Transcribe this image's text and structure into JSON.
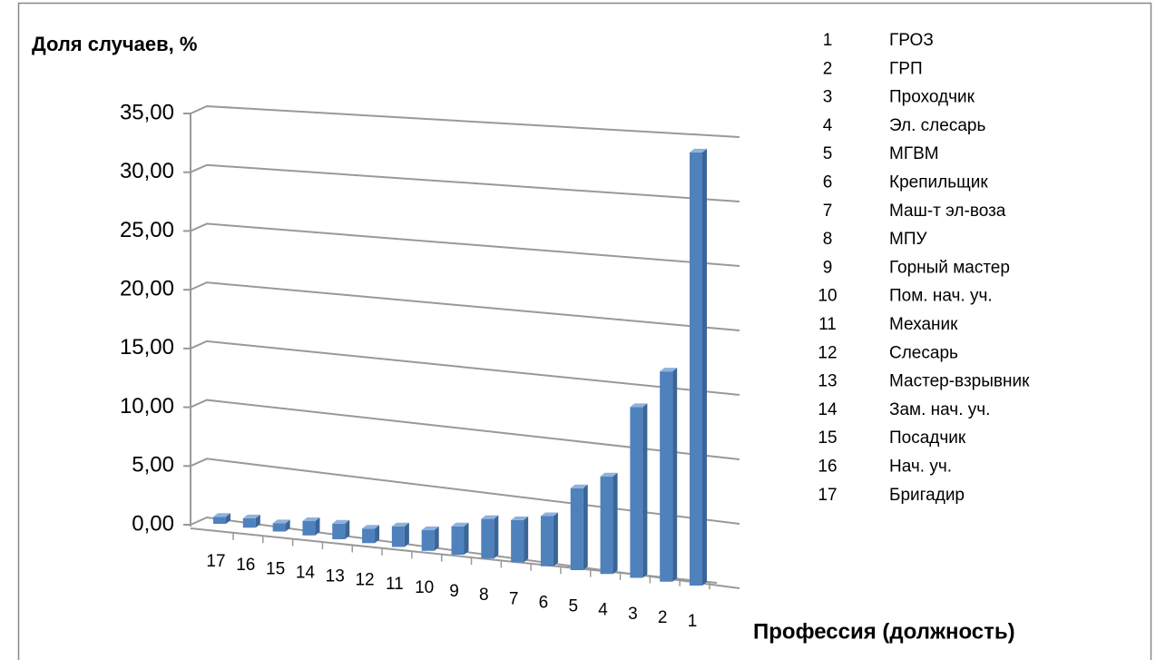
{
  "chart_data": {
    "type": "bar3d",
    "title": "Доля случаев, %",
    "x_label": "Профессия (должность)",
    "categories": [
      "17",
      "16",
      "15",
      "14",
      "13",
      "12",
      "11",
      "10",
      "9",
      "8",
      "7",
      "6",
      "5",
      "4",
      "3",
      "2",
      "1"
    ],
    "values": [
      0.6,
      0.8,
      0.7,
      1.2,
      1.3,
      1.2,
      1.7,
      1.7,
      2.3,
      3.2,
      3.4,
      4.0,
      6.5,
      7.7,
      13.4,
      16.4,
      33.6
    ],
    "color": "#4f81bd",
    "ylim": [
      0,
      35
    ],
    "yticks": [
      {
        "value": 0,
        "label": "0,00"
      },
      {
        "value": 5,
        "label": "5,00"
      },
      {
        "value": 10,
        "label": "10,00"
      },
      {
        "value": 15,
        "label": "15,00"
      },
      {
        "value": 20,
        "label": "20,00"
      },
      {
        "value": 25,
        "label": "25,00"
      },
      {
        "value": 30,
        "label": "30,00"
      },
      {
        "value": 35,
        "label": "35,00"
      }
    ],
    "grid": true,
    "legend": [
      {
        "key": "1",
        "label": "ГРОЗ"
      },
      {
        "key": "2",
        "label": "ГРП"
      },
      {
        "key": "3",
        "label": "Проходчик"
      },
      {
        "key": "4",
        "label": "Эл. слесарь"
      },
      {
        "key": "5",
        "label": "МГВМ"
      },
      {
        "key": "6",
        "label": "Крепильщик"
      },
      {
        "key": "7",
        "label": "Маш-т эл-воза"
      },
      {
        "key": "8",
        "label": "МПУ"
      },
      {
        "key": "9",
        "label": "Горный мастер"
      },
      {
        "key": "10",
        "label": "Пом. нач. уч."
      },
      {
        "key": "11",
        "label": "Механик"
      },
      {
        "key": "12",
        "label": "Слесарь"
      },
      {
        "key": "13",
        "label": "Мастер-взрывник"
      },
      {
        "key": "14",
        "label": "Зам. нач. уч."
      },
      {
        "key": "15",
        "label": "Посадчик"
      },
      {
        "key": "16",
        "label": "Нач. уч."
      },
      {
        "key": "17",
        "label": "Бригадир"
      }
    ]
  }
}
